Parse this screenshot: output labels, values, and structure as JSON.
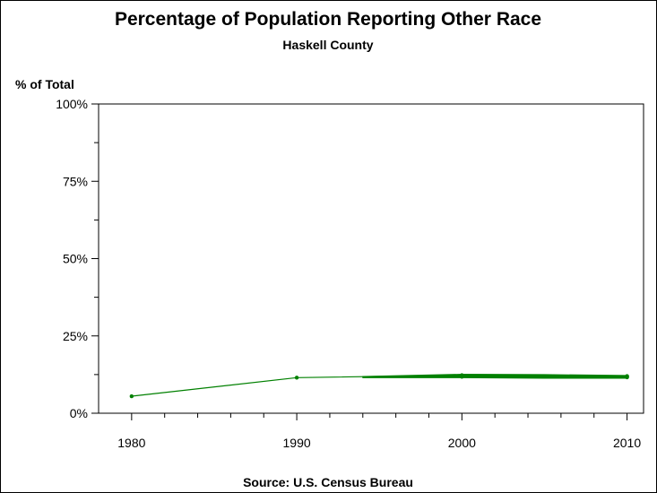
{
  "chart_data": {
    "type": "line",
    "title": "Percentage of Population Reporting Other Race",
    "subtitle": "Haskell County",
    "ylabel": "% of Total",
    "xlabel": "",
    "source": "Source: U.S. Census Bureau",
    "x_ticks": [
      "1980",
      "1990",
      "2000",
      "2010"
    ],
    "y_ticks": [
      "0%",
      "25%",
      "50%",
      "75%",
      "100%"
    ],
    "xlim": [
      1978,
      2011
    ],
    "ylim": [
      0,
      100
    ],
    "grid": false,
    "series_color": "#008000",
    "x": [
      1980,
      1990,
      2000,
      2000,
      2000,
      2010,
      2010,
      2010
    ],
    "values": [
      5.5,
      11.5,
      12.3,
      11.8,
      12.0,
      12.0,
      11.6,
      11.9
    ],
    "band": {
      "x": [
        1994,
        2000,
        2005,
        2010
      ],
      "upper": [
        11.9,
        12.6,
        12.5,
        12.2
      ],
      "lower": [
        11.5,
        11.5,
        11.3,
        11.3
      ]
    }
  }
}
